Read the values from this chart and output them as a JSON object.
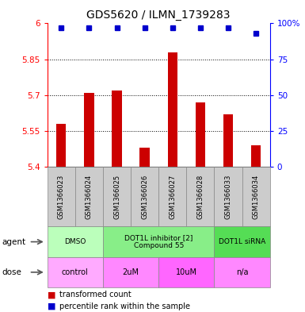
{
  "title": "GDS5620 / ILMN_1739283",
  "samples": [
    "GSM1366023",
    "GSM1366024",
    "GSM1366025",
    "GSM1366026",
    "GSM1366027",
    "GSM1366028",
    "GSM1366033",
    "GSM1366034"
  ],
  "bar_values": [
    5.58,
    5.71,
    5.72,
    5.48,
    5.88,
    5.67,
    5.62,
    5.49
  ],
  "percentile_values": [
    97,
    97,
    97,
    97,
    97,
    97,
    97,
    93
  ],
  "ylim": [
    5.4,
    6.0
  ],
  "yticks": [
    5.4,
    5.55,
    5.7,
    5.85,
    6.0
  ],
  "ytick_labels": [
    "5.4",
    "5.55",
    "5.7",
    "5.85",
    "6"
  ],
  "right_yticks": [
    0,
    25,
    50,
    75,
    100
  ],
  "right_ytick_labels": [
    "0",
    "25",
    "50",
    "75",
    "100%"
  ],
  "bar_color": "#cc0000",
  "dot_color": "#0000cc",
  "agent_data": [
    {
      "label": "DMSO",
      "start": 0,
      "end": 2,
      "color": "#bbffbb"
    },
    {
      "label": "DOT1L inhibitor [2]\nCompound 55",
      "start": 2,
      "end": 6,
      "color": "#88ee88"
    },
    {
      "label": "DOT1L siRNA",
      "start": 6,
      "end": 8,
      "color": "#55dd55"
    }
  ],
  "dose_data": [
    {
      "label": "control",
      "start": 0,
      "end": 2,
      "color": "#ffaaff"
    },
    {
      "label": "2uM",
      "start": 2,
      "end": 4,
      "color": "#ff88ff"
    },
    {
      "label": "10uM",
      "start": 4,
      "end": 6,
      "color": "#ff66ff"
    },
    {
      "label": "n/a",
      "start": 6,
      "end": 8,
      "color": "#ff88ff"
    }
  ],
  "legend_bar_label": "transformed count",
  "legend_dot_label": "percentile rank within the sample",
  "bg_color": "#ffffff",
  "sample_bg_color": "#cccccc",
  "n_samples": 8
}
